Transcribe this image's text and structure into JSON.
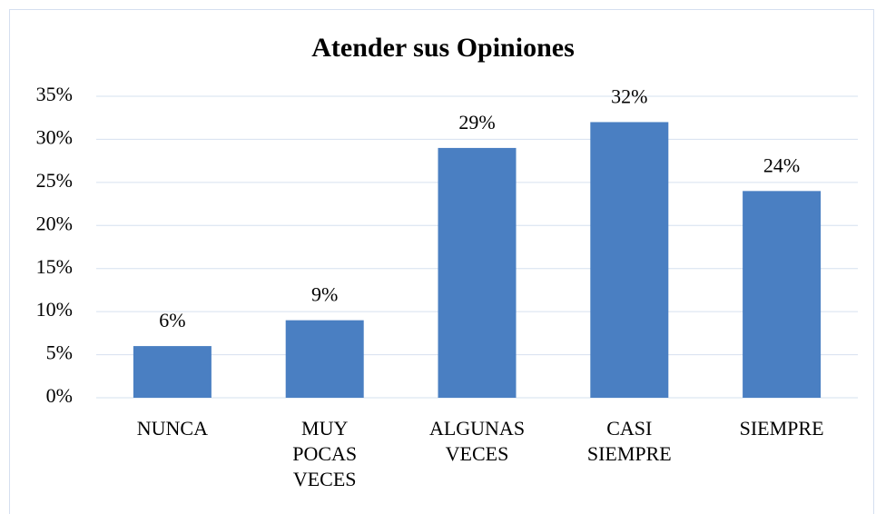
{
  "chart_data": {
    "type": "bar",
    "title": "Atender sus Opiniones",
    "categories": [
      "NUNCA",
      "MUY POCAS VECES",
      "ALGUNAS VECES",
      "CASI SIEMPRE",
      "SIEMPRE"
    ],
    "values": [
      6,
      9,
      29,
      32,
      24
    ],
    "value_labels": [
      "6%",
      "9%",
      "29%",
      "32%",
      "24%"
    ],
    "color": "#4a7fc2",
    "ylim": [
      0,
      35
    ],
    "yticks": [
      {
        "value": 0,
        "label": "0%"
      },
      {
        "value": 5,
        "label": "5%"
      },
      {
        "value": 10,
        "label": "10%"
      },
      {
        "value": 15,
        "label": "15%"
      },
      {
        "value": 20,
        "label": "20%"
      },
      {
        "value": 25,
        "label": "25%"
      },
      {
        "value": 30,
        "label": "30%"
      },
      {
        "value": 35,
        "label": "35%"
      }
    ],
    "grid": true
  }
}
